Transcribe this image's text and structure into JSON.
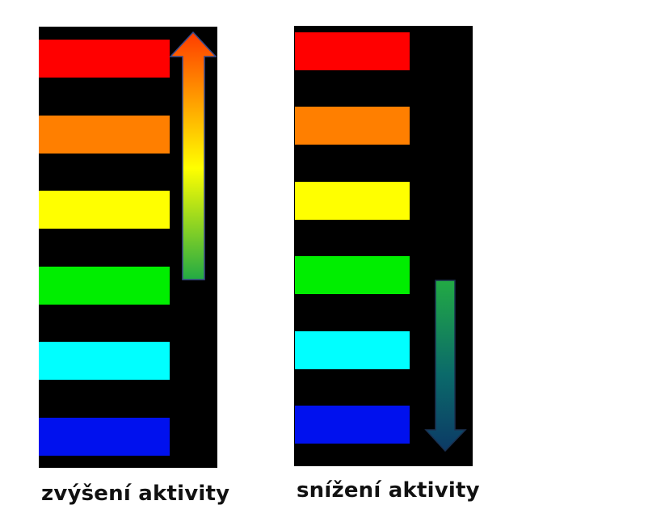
{
  "panels": [
    {
      "id": "increase",
      "caption": "zvýšení aktivity",
      "arrow_direction": "up",
      "arrow_gradient": [
        "#ff3c00",
        "#ffff00",
        "#22aa44"
      ],
      "bars": [
        "#ff0000",
        "#ff7f00",
        "#ffff00",
        "#00ee00",
        "#00ffff",
        "#0011ee"
      ]
    },
    {
      "id": "decrease",
      "caption": "snížení aktivity",
      "arrow_direction": "down",
      "arrow_gradient": [
        "#22aa44",
        "#0b6a6a",
        "#0c3a66"
      ],
      "bars": [
        "#ff0000",
        "#ff7f00",
        "#ffff00",
        "#00ee00",
        "#00ffff",
        "#0011ee"
      ]
    }
  ]
}
